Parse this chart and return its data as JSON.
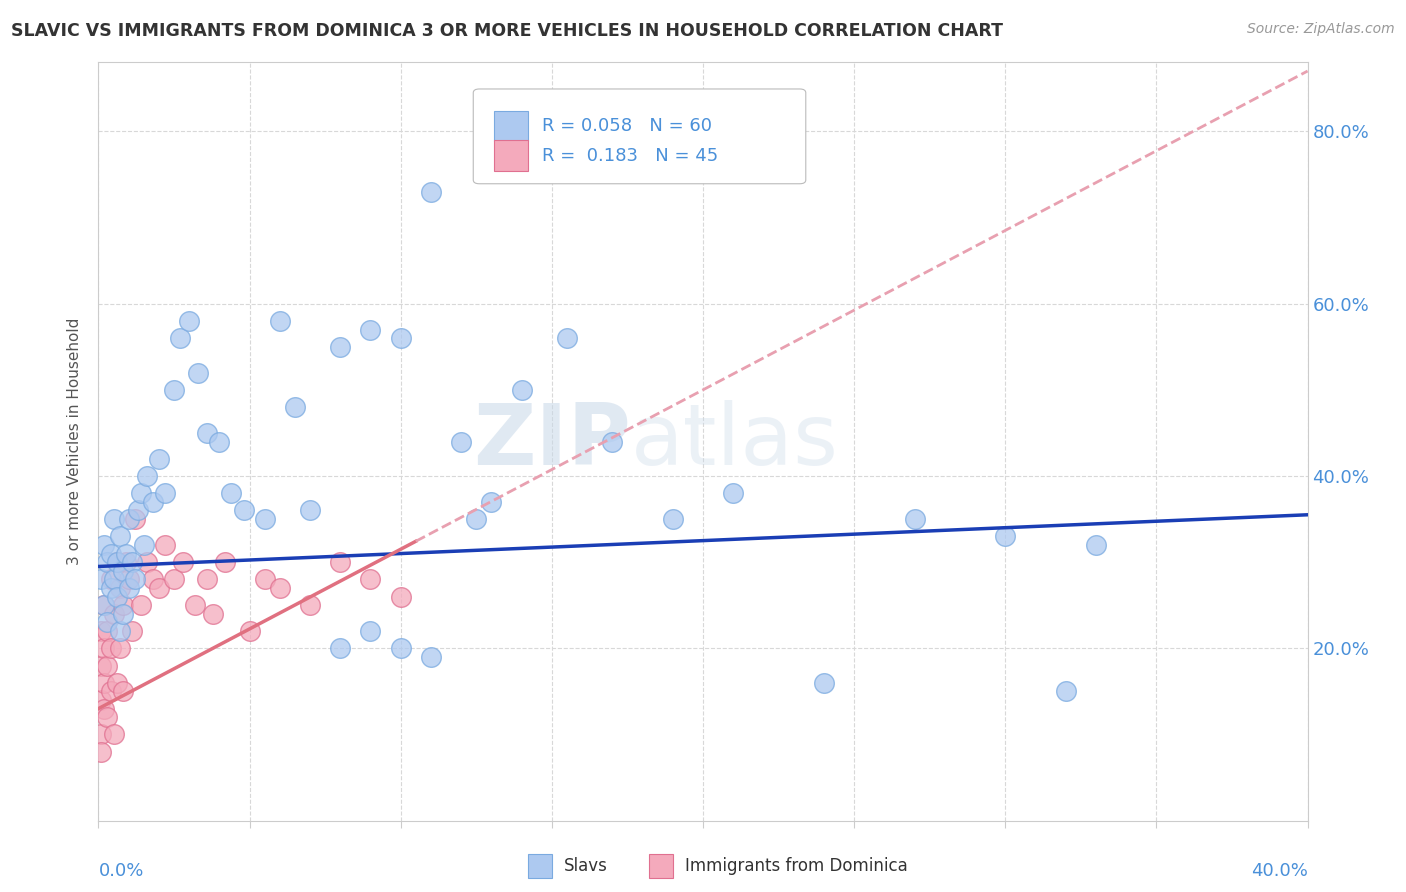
{
  "title": "SLAVIC VS IMMIGRANTS FROM DOMINICA 3 OR MORE VEHICLES IN HOUSEHOLD CORRELATION CHART",
  "source": "Source: ZipAtlas.com",
  "ylabel": "3 or more Vehicles in Household",
  "ylabel_right_values": [
    0.2,
    0.4,
    0.6,
    0.8
  ],
  "xmin": 0.0,
  "xmax": 0.4,
  "ymin": 0.0,
  "ymax": 0.88,
  "watermark_zip": "ZIP",
  "watermark_atlas": "atlas",
  "slavs_color": "#adc9f0",
  "slavs_edge": "#7aaae0",
  "dominica_color": "#f4aabc",
  "dominica_edge": "#e07090",
  "trendline_slavs_color": "#1a3eb5",
  "trendline_dominica_color": "#e07080",
  "trendline_dominica_dash_color": "#e8a0b0",
  "R_slavs": 0.058,
  "N_slavs": 60,
  "R_dominica": 0.183,
  "N_dominica": 45,
  "slavs_x": [
    0.001,
    0.002,
    0.002,
    0.003,
    0.003,
    0.004,
    0.004,
    0.005,
    0.005,
    0.006,
    0.006,
    0.007,
    0.007,
    0.008,
    0.008,
    0.009,
    0.01,
    0.01,
    0.011,
    0.012,
    0.013,
    0.014,
    0.015,
    0.016,
    0.018,
    0.02,
    0.022,
    0.025,
    0.027,
    0.03,
    0.033,
    0.036,
    0.04,
    0.044,
    0.048,
    0.055,
    0.06,
    0.065,
    0.07,
    0.08,
    0.09,
    0.1,
    0.11,
    0.12,
    0.13,
    0.14,
    0.155,
    0.17,
    0.19,
    0.21,
    0.24,
    0.27,
    0.3,
    0.33,
    0.08,
    0.09,
    0.1,
    0.11,
    0.125,
    0.32
  ],
  "slavs_y": [
    0.28,
    0.32,
    0.25,
    0.3,
    0.23,
    0.31,
    0.27,
    0.28,
    0.35,
    0.26,
    0.3,
    0.22,
    0.33,
    0.24,
    0.29,
    0.31,
    0.27,
    0.35,
    0.3,
    0.28,
    0.36,
    0.38,
    0.32,
    0.4,
    0.37,
    0.42,
    0.38,
    0.5,
    0.56,
    0.58,
    0.52,
    0.45,
    0.44,
    0.38,
    0.36,
    0.35,
    0.58,
    0.48,
    0.36,
    0.55,
    0.57,
    0.56,
    0.73,
    0.44,
    0.37,
    0.5,
    0.56,
    0.44,
    0.35,
    0.38,
    0.16,
    0.35,
    0.33,
    0.32,
    0.2,
    0.22,
    0.2,
    0.19,
    0.35,
    0.15
  ],
  "dominica_x": [
    0.001,
    0.001,
    0.001,
    0.001,
    0.001,
    0.002,
    0.002,
    0.002,
    0.002,
    0.003,
    0.003,
    0.003,
    0.004,
    0.004,
    0.004,
    0.005,
    0.005,
    0.006,
    0.006,
    0.007,
    0.007,
    0.008,
    0.008,
    0.009,
    0.01,
    0.011,
    0.012,
    0.014,
    0.016,
    0.018,
    0.02,
    0.022,
    0.025,
    0.028,
    0.032,
    0.036,
    0.038,
    0.042,
    0.05,
    0.055,
    0.06,
    0.07,
    0.08,
    0.09,
    0.1
  ],
  "dominica_y": [
    0.14,
    0.18,
    0.22,
    0.1,
    0.08,
    0.16,
    0.2,
    0.13,
    0.25,
    0.18,
    0.12,
    0.22,
    0.28,
    0.15,
    0.2,
    0.24,
    0.1,
    0.3,
    0.16,
    0.27,
    0.2,
    0.25,
    0.15,
    0.3,
    0.28,
    0.22,
    0.35,
    0.25,
    0.3,
    0.28,
    0.27,
    0.32,
    0.28,
    0.3,
    0.25,
    0.28,
    0.24,
    0.3,
    0.22,
    0.28,
    0.27,
    0.25,
    0.3,
    0.28,
    0.26
  ],
  "background_color": "#ffffff",
  "grid_color": "#d8d8d8",
  "axis_color": "#cccccc",
  "title_color": "#333333",
  "tick_color": "#4a90d9",
  "source_color": "#999999"
}
